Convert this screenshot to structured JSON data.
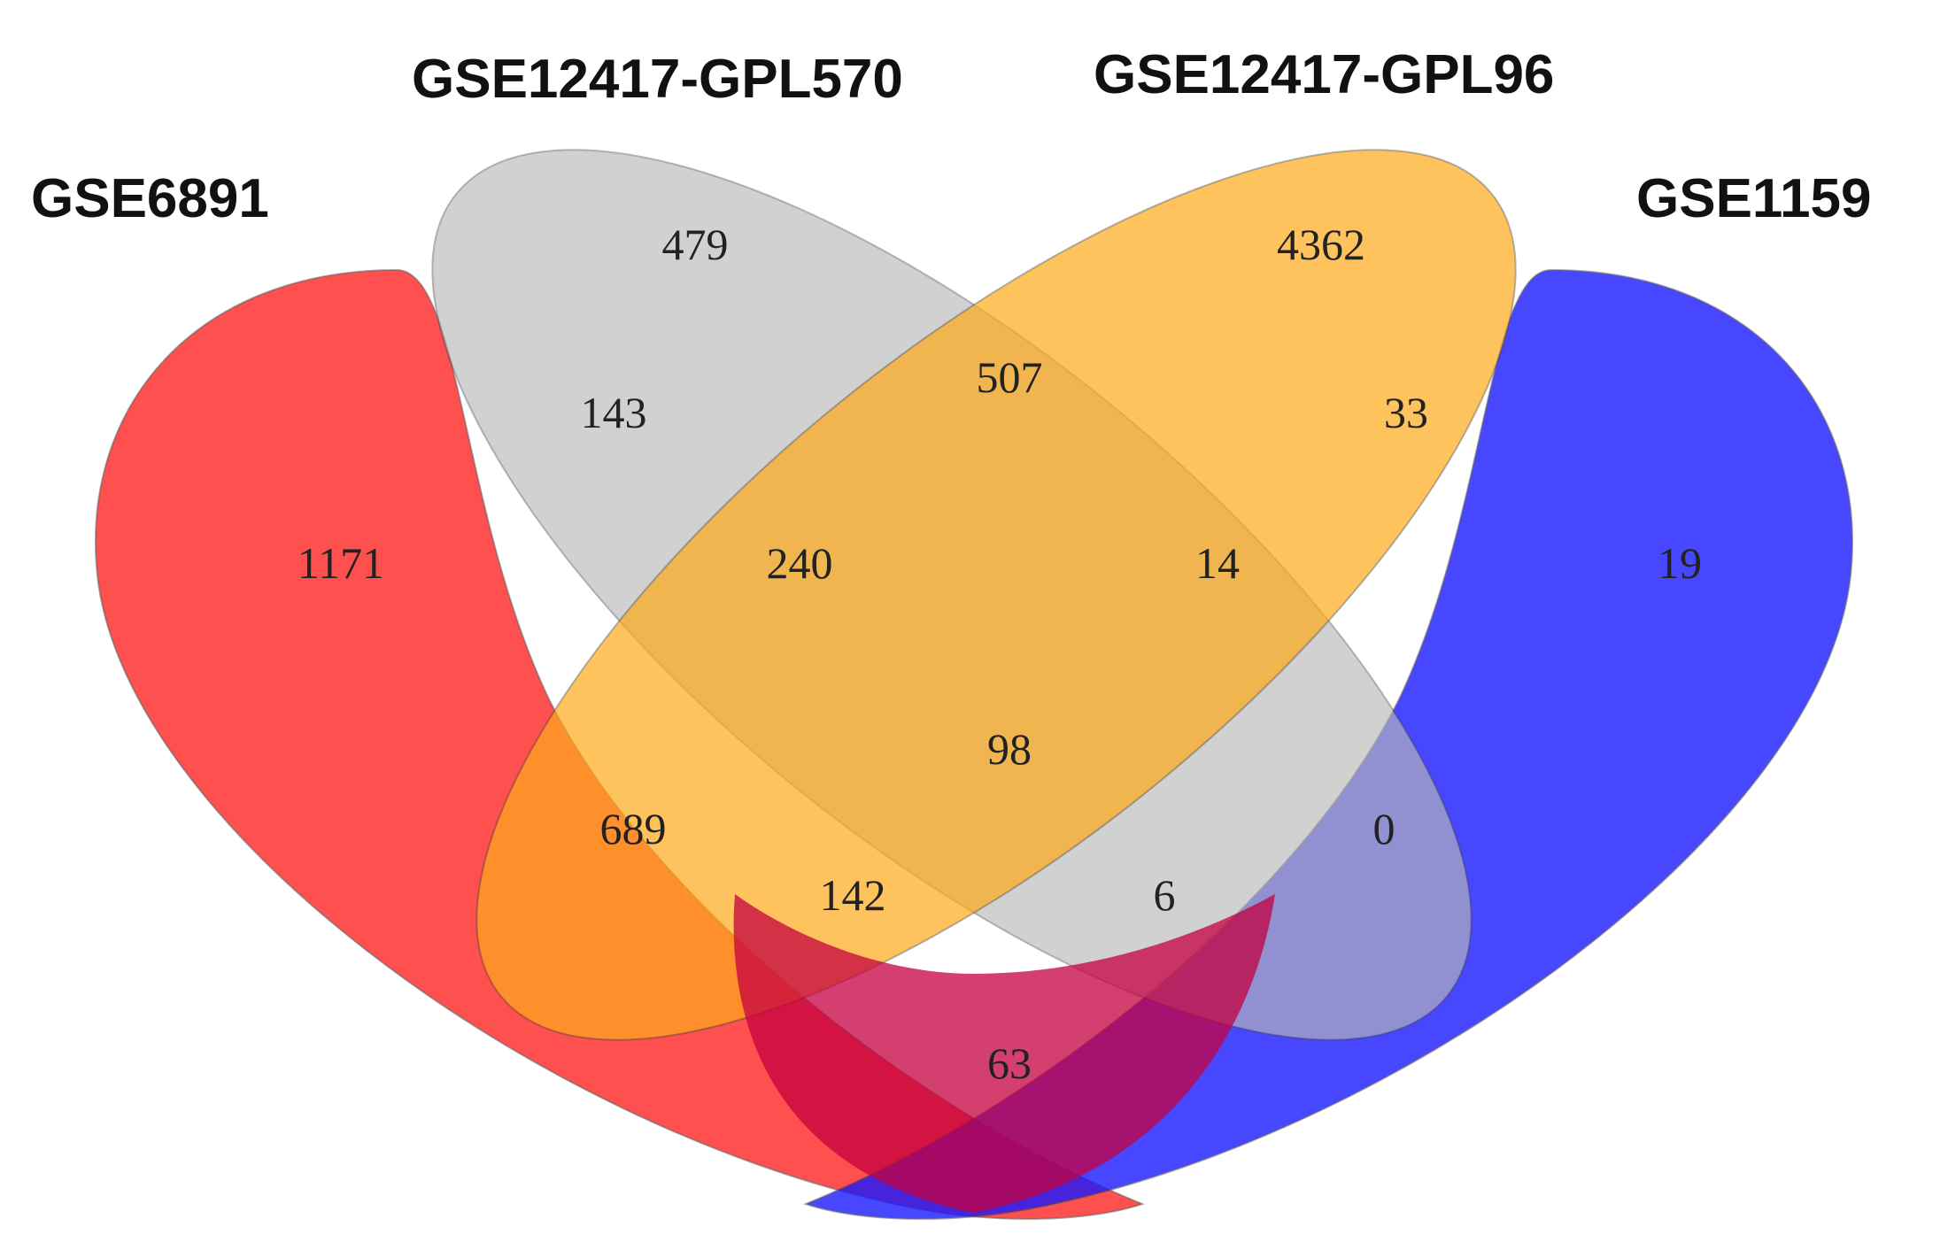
{
  "sets": [
    {
      "id": "gse6891",
      "name": "GSE6891",
      "color": "#ff2a2a"
    },
    {
      "id": "gse12417_gpl570",
      "name": "GSE12417-GPL570",
      "color": "#b9b9b9"
    },
    {
      "id": "gse12417_gpl96",
      "name": "GSE12417-GPL96",
      "color": "#ffaa1a"
    },
    {
      "id": "gse1159",
      "name": "GSE1159",
      "color": "#1a1aff"
    }
  ],
  "regions": [
    {
      "id": "r-6891-only",
      "sets": [
        "gse6891"
      ],
      "count": "1171"
    },
    {
      "id": "r-570-only",
      "sets": [
        "gse12417_gpl570"
      ],
      "count": "479"
    },
    {
      "id": "r-96-only",
      "sets": [
        "gse12417_gpl96"
      ],
      "count": "4362"
    },
    {
      "id": "r-1159-only",
      "sets": [
        "gse1159"
      ],
      "count": "19"
    },
    {
      "id": "r-6891-570",
      "sets": [
        "gse6891",
        "gse12417_gpl570"
      ],
      "count": "143"
    },
    {
      "id": "r-570-96",
      "sets": [
        "gse12417_gpl570",
        "gse12417_gpl96"
      ],
      "count": "507"
    },
    {
      "id": "r-96-1159",
      "sets": [
        "gse12417_gpl96",
        "gse1159"
      ],
      "count": "33"
    },
    {
      "id": "r-6891-570-96",
      "sets": [
        "gse6891",
        "gse12417_gpl570",
        "gse12417_gpl96"
      ],
      "count": "240"
    },
    {
      "id": "r-570-96-1159",
      "sets": [
        "gse12417_gpl570",
        "gse12417_gpl96",
        "gse1159"
      ],
      "count": "14"
    },
    {
      "id": "r-all",
      "sets": [
        "gse6891",
        "gse12417_gpl570",
        "gse12417_gpl96",
        "gse1159"
      ],
      "count": "98"
    },
    {
      "id": "r-6891-96",
      "sets": [
        "gse6891",
        "gse12417_gpl96"
      ],
      "count": "689"
    },
    {
      "id": "r-570-1159",
      "sets": [
        "gse12417_gpl570",
        "gse1159"
      ],
      "count": "0"
    },
    {
      "id": "r-6891-96-1159",
      "sets": [
        "gse6891",
        "gse12417_gpl96",
        "gse1159"
      ],
      "count": "142"
    },
    {
      "id": "r-6891-570-1159",
      "sets": [
        "gse6891",
        "gse12417_gpl570",
        "gse1159"
      ],
      "count": "6"
    },
    {
      "id": "r-6891-1159",
      "sets": [
        "gse6891",
        "gse1159"
      ],
      "count": "63"
    }
  ]
}
